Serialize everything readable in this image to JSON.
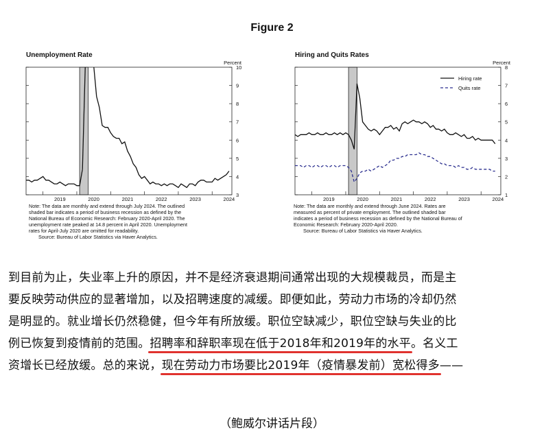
{
  "figure_title": "Figure 2",
  "chart_data": [
    {
      "type": "line",
      "title": "Unemployment Rate",
      "ylabel": "Percent",
      "xlabel": "",
      "x_ticks": [
        "2019",
        "2020",
        "2021",
        "2022",
        "2023",
        "2024"
      ],
      "ylim": [
        3,
        10
      ],
      "y_ticks": [
        "3",
        "4",
        "5",
        "6",
        "7",
        "8",
        "9",
        "10"
      ],
      "y_axis_side": "right",
      "shaded_recession": [
        "2020-02",
        "2020-04"
      ],
      "series": [
        {
          "color": "#111111",
          "x": [
            "2018-07",
            "2018-08",
            "2018-09",
            "2018-10",
            "2018-11",
            "2018-12",
            "2019-01",
            "2019-02",
            "2019-03",
            "2019-04",
            "2019-05",
            "2019-06",
            "2019-07",
            "2019-08",
            "2019-09",
            "2019-10",
            "2019-11",
            "2019-12",
            "2020-01",
            "2020-02",
            "2020-03",
            "2020-04",
            "2020-05",
            "2020-06",
            "2020-07",
            "2020-08",
            "2020-09",
            "2020-10",
            "2020-11",
            "2020-12",
            "2021-01",
            "2021-02",
            "2021-03",
            "2021-04",
            "2021-05",
            "2021-06",
            "2021-07",
            "2021-08",
            "2021-09",
            "2021-10",
            "2021-11",
            "2021-12",
            "2022-01",
            "2022-02",
            "2022-03",
            "2022-04",
            "2022-05",
            "2022-06",
            "2022-07",
            "2022-08",
            "2022-09",
            "2022-10",
            "2022-11",
            "2022-12",
            "2023-01",
            "2023-02",
            "2023-03",
            "2023-04",
            "2023-05",
            "2023-06",
            "2023-07",
            "2023-08",
            "2023-09",
            "2023-10",
            "2023-11",
            "2023-12",
            "2024-01",
            "2024-02",
            "2024-03",
            "2024-04",
            "2024-05",
            "2024-06",
            "2024-07"
          ],
          "values": [
            3.8,
            3.8,
            3.7,
            3.8,
            3.8,
            3.9,
            4.0,
            3.8,
            3.8,
            3.7,
            3.6,
            3.6,
            3.7,
            3.6,
            3.5,
            3.6,
            3.6,
            3.6,
            3.5,
            3.5,
            4.4,
            null,
            null,
            null,
            null,
            8.4,
            7.8,
            6.8,
            6.7,
            6.7,
            6.4,
            6.2,
            6.1,
            6.1,
            5.8,
            5.9,
            5.4,
            5.1,
            4.7,
            4.5,
            4.1,
            3.9,
            4.0,
            3.8,
            3.6,
            3.7,
            3.6,
            3.6,
            3.5,
            3.6,
            3.5,
            3.6,
            3.6,
            3.5,
            3.4,
            3.6,
            3.5,
            3.4,
            3.6,
            3.6,
            3.5,
            3.7,
            3.8,
            3.8,
            3.7,
            3.7,
            3.7,
            3.9,
            3.8,
            3.9,
            4.0,
            4.1,
            4.3
          ]
        }
      ],
      "note_lines": [
        "Note: The data are monthly and extend through July 2024. The outlined",
        "shaded bar indicates a period of business recession as defined by the",
        "National Bureau of Economic Research: February 2020-April 2020. The",
        "unemployment rate peaked at 14.8 percent in April 2020. Unemployment",
        "rates for April-July 2020 are omitted for readability.",
        "Source: Bureau of Labor Statistics via Haver Analytics."
      ]
    },
    {
      "type": "line",
      "title": "Hiring and Quits Rates",
      "ylabel": "Percent",
      "xlabel": "",
      "x_ticks": [
        "2019",
        "2020",
        "2021",
        "2022",
        "2023",
        "2024"
      ],
      "ylim": [
        1,
        8
      ],
      "y_ticks": [
        "1",
        "2",
        "3",
        "4",
        "5",
        "6",
        "7",
        "8"
      ],
      "y_axis_side": "right",
      "legend": "top-right",
      "shaded_recession": [
        "2020-02",
        "2020-04"
      ],
      "series": [
        {
          "name": "Hiring rate",
          "color": "#111111",
          "style": "solid",
          "x": [
            "2018-07",
            "2018-08",
            "2018-09",
            "2018-10",
            "2018-11",
            "2018-12",
            "2019-01",
            "2019-02",
            "2019-03",
            "2019-04",
            "2019-05",
            "2019-06",
            "2019-07",
            "2019-08",
            "2019-09",
            "2019-10",
            "2019-11",
            "2019-12",
            "2020-01",
            "2020-02",
            "2020-03",
            "2020-04",
            "2020-05",
            "2020-06",
            "2020-07",
            "2020-08",
            "2020-09",
            "2020-10",
            "2020-11",
            "2020-12",
            "2021-01",
            "2021-02",
            "2021-03",
            "2021-04",
            "2021-05",
            "2021-06",
            "2021-07",
            "2021-08",
            "2021-09",
            "2021-10",
            "2021-11",
            "2021-12",
            "2022-01",
            "2022-02",
            "2022-03",
            "2022-04",
            "2022-05",
            "2022-06",
            "2022-07",
            "2022-08",
            "2022-09",
            "2022-10",
            "2022-11",
            "2022-12",
            "2023-01",
            "2023-02",
            "2023-03",
            "2023-04",
            "2023-05",
            "2023-06",
            "2023-07",
            "2023-08",
            "2023-09",
            "2023-10",
            "2023-11",
            "2023-12",
            "2024-01",
            "2024-02",
            "2024-03",
            "2024-04",
            "2024-05",
            "2024-06"
          ],
          "values": [
            4.3,
            4.2,
            4.3,
            4.3,
            4.3,
            4.4,
            4.3,
            4.3,
            4.4,
            4.3,
            4.3,
            4.4,
            4.3,
            4.3,
            4.4,
            4.3,
            4.4,
            4.3,
            4.4,
            4.3,
            4.0,
            3.5,
            7.1,
            6.3,
            5.0,
            4.8,
            4.6,
            4.5,
            4.6,
            4.5,
            4.3,
            4.5,
            4.7,
            4.7,
            4.8,
            4.6,
            4.7,
            4.5,
            4.9,
            5.0,
            4.9,
            5.0,
            5.1,
            5.0,
            5.0,
            4.9,
            5.0,
            4.9,
            4.7,
            4.8,
            4.6,
            4.6,
            4.5,
            4.6,
            4.4,
            4.3,
            4.3,
            4.4,
            4.3,
            4.2,
            4.3,
            4.1,
            4.1,
            4.2,
            4.0,
            4.1,
            4.0,
            4.0,
            4.0,
            4.0,
            4.0,
            3.8
          ]
        },
        {
          "name": "Quits rate",
          "color": "#2b2f8f",
          "style": "dashed",
          "x": [
            "2018-07",
            "2018-08",
            "2018-09",
            "2018-10",
            "2018-11",
            "2018-12",
            "2019-01",
            "2019-02",
            "2019-03",
            "2019-04",
            "2019-05",
            "2019-06",
            "2019-07",
            "2019-08",
            "2019-09",
            "2019-10",
            "2019-11",
            "2019-12",
            "2020-01",
            "2020-02",
            "2020-03",
            "2020-04",
            "2020-05",
            "2020-06",
            "2020-07",
            "2020-08",
            "2020-09",
            "2020-10",
            "2020-11",
            "2020-12",
            "2021-01",
            "2021-02",
            "2021-03",
            "2021-04",
            "2021-05",
            "2021-06",
            "2021-07",
            "2021-08",
            "2021-09",
            "2021-10",
            "2021-11",
            "2021-12",
            "2022-01",
            "2022-02",
            "2022-03",
            "2022-04",
            "2022-05",
            "2022-06",
            "2022-07",
            "2022-08",
            "2022-09",
            "2022-10",
            "2022-11",
            "2022-12",
            "2023-01",
            "2023-02",
            "2023-03",
            "2023-04",
            "2023-05",
            "2023-06",
            "2023-07",
            "2023-08",
            "2023-09",
            "2023-10",
            "2023-11",
            "2023-12",
            "2024-01",
            "2024-02",
            "2024-03",
            "2024-04",
            "2024-05",
            "2024-06"
          ],
          "values": [
            2.6,
            2.6,
            2.6,
            2.5,
            2.6,
            2.6,
            2.5,
            2.6,
            2.6,
            2.5,
            2.6,
            2.6,
            2.5,
            2.6,
            2.6,
            2.5,
            2.6,
            2.6,
            2.6,
            2.5,
            2.3,
            1.7,
            1.9,
            2.2,
            2.3,
            2.3,
            2.4,
            2.3,
            2.4,
            2.5,
            2.6,
            2.5,
            2.6,
            2.7,
            2.9,
            2.9,
            3.0,
            3.0,
            3.1,
            3.1,
            3.2,
            3.2,
            3.2,
            3.2,
            3.3,
            3.2,
            3.2,
            3.1,
            3.1,
            3.0,
            2.9,
            2.8,
            2.7,
            2.7,
            2.6,
            2.6,
            2.6,
            2.5,
            2.6,
            2.5,
            2.5,
            2.4,
            2.4,
            2.5,
            2.4,
            2.4,
            2.4,
            2.4,
            2.4,
            2.4,
            2.3,
            2.3
          ]
        }
      ],
      "note_lines": [
        "Note: The data are monthly and extend through June 2024. Rates are",
        "measured as percent of private employment. The outlined shaded bar",
        "indicates a period of business recession as defined by the National Bureau of",
        "Economic Research: February 2020-April 2020.",
        "Source: Bureau of Labor Statistics via Haver Analytics."
      ]
    }
  ],
  "paragraph": {
    "line1": "到目前为止，失业率上升的原因，并不是经济衰退期间通常出现的大规模裁员，而是主",
    "line2": "要反映劳动供应的显著增加，以及招聘速度的减缓。即便如此，劳动力市场的冷却仍然",
    "line3": "是明显的。就业增长仍然稳健，但今年有所放缓。职位空缺减少，职位空缺与失业的比",
    "line4_a": "例已恢复到疫情前的范围。",
    "line4_b": "招聘率和辞职率现在低于2018年和2019年的水平",
    "line4_c": "。名义工",
    "line5_a": "资增长已经放缓。总的来说，",
    "line5_b": "现在劳动力市场要比2019年（疫情暴发前）宽松得多",
    "line5_c": "——"
  },
  "source_label": "（鲍威尔讲话片段）"
}
